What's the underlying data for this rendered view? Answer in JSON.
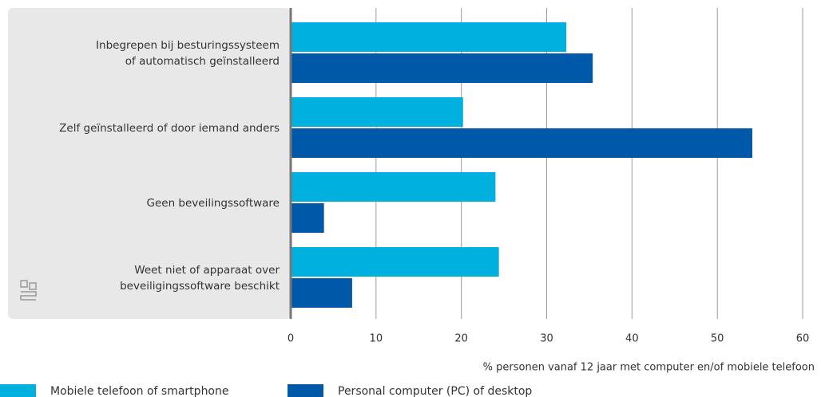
{
  "chart_data": {
    "type": "bar",
    "orientation": "horizontal",
    "categories": [
      "Inbegrepen bij besturingssysteem\nof automatisch geïnstalleerd",
      "Zelf geïnstalleerd of door iemand anders",
      "Geen beveilingssoftware",
      "Weet niet of apparaat over\nbeveiligingssoftware beschikt"
    ],
    "series": [
      {
        "name": "Mobiele telefoon of smartphone",
        "color": "#00b1e0",
        "values": [
          32.3,
          20.2,
          24,
          24.4
        ]
      },
      {
        "name": "Personal computer (PC) of desktop",
        "color": "#0058a8",
        "values": [
          35.4,
          54.1,
          3.9,
          7.2
        ]
      }
    ],
    "xlabel": "% personen vanaf 12 jaar met computer en/of mobiele telefoon",
    "xlim": [
      0,
      60
    ],
    "xticks": [
      0,
      10,
      20,
      30,
      40,
      50,
      60
    ],
    "grid": true
  }
}
